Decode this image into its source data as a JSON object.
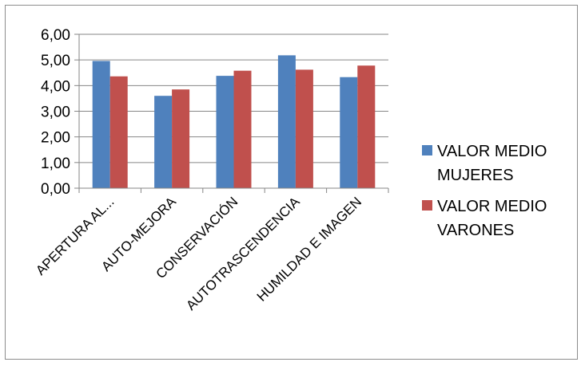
{
  "chart_data": {
    "type": "bar",
    "title": "",
    "xlabel": "",
    "ylabel": "",
    "categories": [
      "APERTURA AL...",
      "AUTO-MEJORA",
      "CONSERVACIÓN",
      "AUTOTRASCENDENCIA",
      "HUMILDAD E IMAGEN"
    ],
    "series": [
      {
        "name": "VALOR MEDIO MUJERES",
        "legend_lines": [
          "VALOR MEDIO",
          "MUJERES"
        ],
        "color": "#4f81bd",
        "values": [
          4.96,
          3.6,
          4.38,
          5.18,
          4.33
        ]
      },
      {
        "name": "VALOR MEDIO VARONES",
        "legend_lines": [
          "VALOR MEDIO",
          "VARONES"
        ],
        "color": "#c0504d",
        "values": [
          4.36,
          3.85,
          4.58,
          4.62,
          4.78
        ]
      }
    ],
    "ylim": [
      0,
      6
    ],
    "yticks": [
      "0,00",
      "1,00",
      "2,00",
      "3,00",
      "4,00",
      "5,00",
      "6,00"
    ],
    "grid": true,
    "legend_position": "right"
  }
}
